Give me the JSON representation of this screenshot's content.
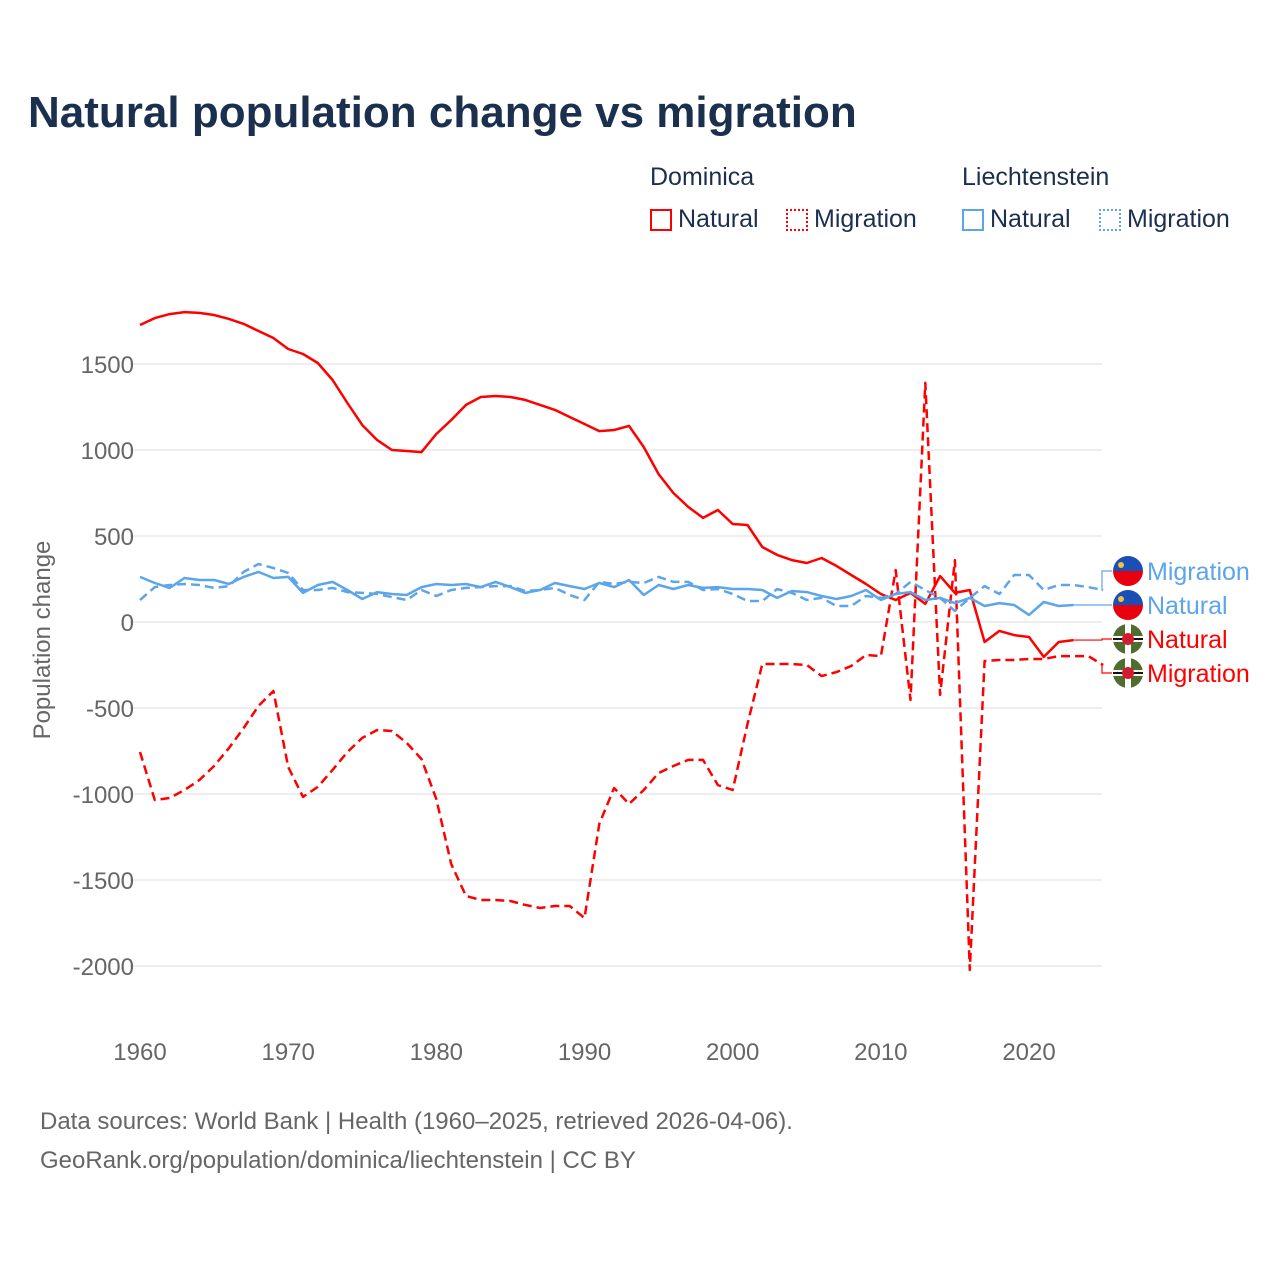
{
  "title": "Natural population change vs migration",
  "legend": {
    "groups": [
      {
        "name": "Dominica",
        "items": [
          {
            "label": "Natural",
            "style": "solid"
          },
          {
            "label": "Migration",
            "style": "dotted"
          }
        ],
        "color": "#ff0000"
      },
      {
        "name": "Liechtenstein",
        "items": [
          {
            "label": "Natural",
            "style": "solid"
          },
          {
            "label": "Migration",
            "style": "dotted"
          }
        ],
        "color": "#5da5ea"
      }
    ]
  },
  "footer": {
    "line1": "Data sources: World Bank | Health (1960–2025, retrieved 2026-04-06).",
    "line2": "GeoRank.org/population/dominica/liechtenstein | CC BY"
  },
  "chart_data": {
    "type": "line",
    "title": "Natural population change vs migration",
    "xlabel": "",
    "ylabel": "Population change",
    "xlim": [
      1960,
      2025
    ],
    "ylim": [
      -2300,
      1850
    ],
    "xticks": [
      1960,
      1970,
      1980,
      1990,
      2000,
      2010,
      2020
    ],
    "yticks": [
      -2000,
      -1500,
      -1000,
      -500,
      0,
      500,
      1000,
      1500
    ],
    "grid": true,
    "series": [
      {
        "name": "Dominica Natural",
        "end_label": "Natural",
        "country": "Dominica",
        "color": "#ff0000",
        "dash": "solid",
        "start": 1960,
        "values": [
          1727,
          1767,
          1790,
          1802,
          1797,
          1785,
          1762,
          1733,
          1692,
          1651,
          1587,
          1558,
          1506,
          1407,
          1273,
          1145,
          1058,
          1000,
          994,
          988,
          1093,
          1174,
          1262,
          1308,
          1314,
          1308,
          1291,
          1262,
          1233,
          1192,
          1151,
          1110,
          1116,
          1140,
          1017,
          860,
          750,
          669,
          605,
          651,
          570,
          564,
          436,
          390,
          360,
          343,
          372,
          326,
          273,
          221,
          163,
          128,
          169,
          105,
          267,
          169,
          186,
          -116,
          -52,
          -76,
          -87,
          -203,
          -116,
          -105
        ]
      },
      {
        "name": "Dominica Migration",
        "end_label": "Migration",
        "country": "Dominica",
        "color": "#ff0000",
        "dash": "dashed",
        "start": 1960,
        "values": [
          -756,
          -1035,
          -1023,
          -977,
          -919,
          -837,
          -733,
          -616,
          -488,
          -401,
          -843,
          -1017,
          -959,
          -860,
          -756,
          -674,
          -628,
          -634,
          -703,
          -797,
          -1029,
          -1407,
          -1593,
          -1616,
          -1616,
          -1622,
          -1645,
          -1663,
          -1651,
          -1651,
          -1721,
          -1174,
          -965,
          -1058,
          -977,
          -878,
          -837,
          -802,
          -802,
          -948,
          -977,
          -593,
          -244,
          -244,
          -244,
          -250,
          -314,
          -291,
          -256,
          -192,
          -198,
          302,
          -453,
          1390,
          -424,
          360,
          -2023,
          -227,
          -221,
          -221,
          -215,
          -215,
          -198,
          -198,
          -198,
          -250
        ]
      },
      {
        "name": "Liechtenstein Natural",
        "end_label": "Natural",
        "country": "Liechtenstein",
        "color": "#5da5ea",
        "dash": "solid",
        "start": 1960,
        "values": [
          262,
          227,
          198,
          256,
          244,
          244,
          221,
          262,
          291,
          256,
          262,
          169,
          215,
          233,
          186,
          134,
          174,
          163,
          157,
          203,
          221,
          215,
          221,
          203,
          233,
          203,
          169,
          186,
          227,
          209,
          192,
          227,
          203,
          244,
          157,
          215,
          192,
          215,
          198,
          203,
          192,
          192,
          186,
          140,
          180,
          174,
          151,
          134,
          151,
          186,
          128,
          163,
          174,
          128,
          140,
          110,
          140,
          93,
          110,
          99,
          41,
          116,
          93,
          99
        ]
      },
      {
        "name": "Liechtenstein Migration",
        "end_label": "Migration",
        "country": "Liechtenstein",
        "color": "#5da5ea",
        "dash": "dashed",
        "start": 1960,
        "values": [
          128,
          203,
          215,
          221,
          215,
          198,
          209,
          291,
          337,
          314,
          285,
          186,
          186,
          198,
          174,
          169,
          163,
          145,
          128,
          186,
          151,
          186,
          198,
          203,
          209,
          209,
          180,
          186,
          198,
          157,
          128,
          233,
          221,
          233,
          227,
          262,
          233,
          233,
          186,
          192,
          163,
          122,
          122,
          192,
          169,
          128,
          140,
          93,
          93,
          151,
          140,
          163,
          233,
          186,
          140,
          64,
          140,
          209,
          163,
          273,
          273,
          186,
          215,
          215,
          203,
          186
        ]
      }
    ],
    "end_labels_order": [
      "Liechtenstein Migration",
      "Liechtenstein Natural",
      "Dominica Natural",
      "Dominica Migration"
    ]
  }
}
